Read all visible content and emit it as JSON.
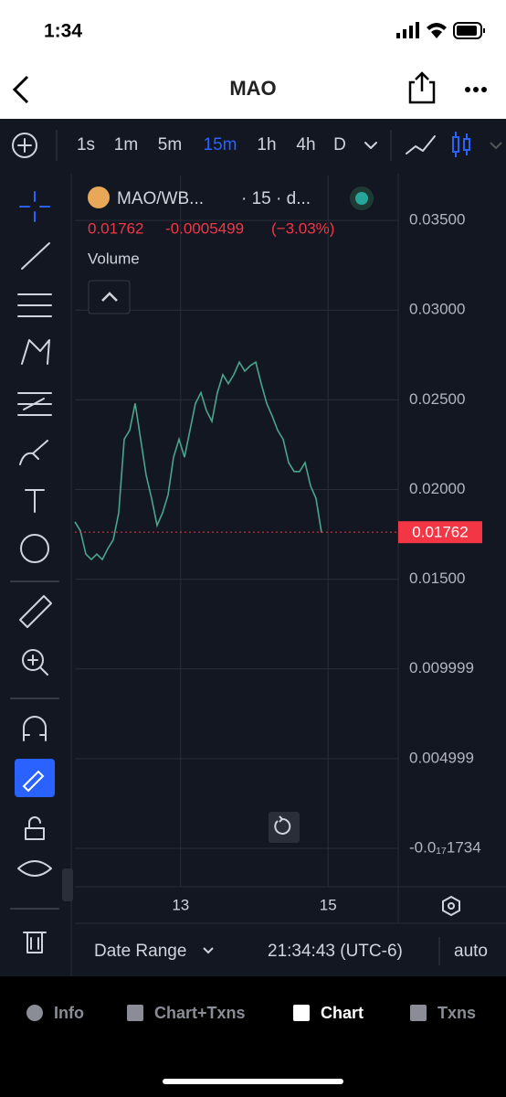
{
  "status_bar": {
    "time": "1:34"
  },
  "header": {
    "title": "MAO"
  },
  "toolbar": {
    "timeframes": [
      "1s",
      "1m",
      "5m",
      "15m",
      "1h",
      "4h",
      "D"
    ],
    "selected_timeframe": 3
  },
  "chart_data": {
    "type": "line",
    "symbol": "MAO/WB...",
    "interval": "· 15 · d...",
    "change": -0.0005499,
    "change_percent": "(−3.03%)",
    "volume_label": "Volume",
    "last_price": 0.01762,
    "last_price_color": "#f23645",
    "x": [
      0,
      1,
      2,
      3,
      4,
      5,
      6,
      7,
      8,
      9,
      10,
      11,
      12,
      13,
      14,
      15,
      16,
      17,
      18,
      19,
      20,
      21,
      22,
      23,
      24,
      25,
      26,
      27,
      28,
      29,
      30,
      31,
      32,
      33,
      34,
      35,
      36,
      37,
      38,
      39,
      40,
      41,
      42,
      43,
      44,
      45
    ],
    "series": [
      {
        "name": "MAO/WB...",
        "color": "#4aa58c",
        "values": [
          0.0182,
          0.0177,
          0.0164,
          0.0161,
          0.0164,
          0.0161,
          0.0167,
          0.0172,
          0.0187,
          0.0228,
          0.0233,
          0.0248,
          0.0228,
          0.0208,
          0.0195,
          0.018,
          0.0187,
          0.0197,
          0.0218,
          0.0228,
          0.0218,
          0.0233,
          0.0248,
          0.0254,
          0.0244,
          0.0238,
          0.0254,
          0.0264,
          0.0259,
          0.0264,
          0.0271,
          0.0266,
          0.0269,
          0.0271,
          0.0259,
          0.0248,
          0.0241,
          0.0233,
          0.0228,
          0.0215,
          0.021,
          0.021,
          0.0215,
          0.0202,
          0.0195,
          0.0176
        ]
      }
    ],
    "xlim": [
      0,
      59
    ],
    "xticks": [
      {
        "value": 19.3,
        "label": "13"
      },
      {
        "value": 46.2,
        "label": "15"
      }
    ],
    "ylim": [
      -0.00214,
      0.0375
    ],
    "yticks": [
      {
        "value": 0.035,
        "label": "0.03500"
      },
      {
        "value": 0.03,
        "label": "0.03000"
      },
      {
        "value": 0.025,
        "label": "0.02500"
      },
      {
        "value": 0.02,
        "label": "0.02000"
      },
      {
        "value": 0.015,
        "label": "0.01500"
      },
      {
        "value": 0.009999,
        "label": "0.009999"
      },
      {
        "value": 0.004999,
        "label": "0.004999"
      },
      {
        "value": 0,
        "label": "-0.0₁₇1734"
      }
    ],
    "grid": true
  },
  "footer": {
    "date_range": "Date Range",
    "time": "21:34:43 (UTC-6)",
    "scale": "auto"
  },
  "tabs": [
    "Info",
    "Chart+Txns",
    "Chart",
    "Txns"
  ],
  "selected_tab": 2
}
